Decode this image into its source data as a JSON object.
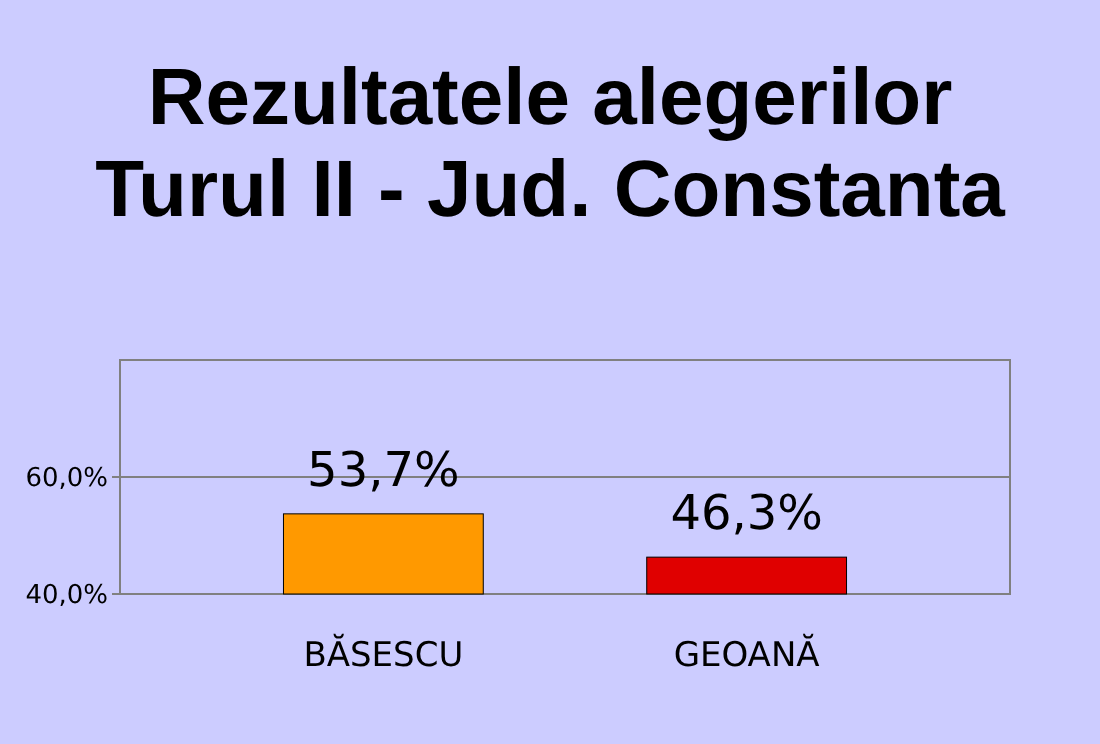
{
  "chart_data": {
    "type": "bar",
    "title": "Rezultatele alegerilor\nTurul II - Jud. Constanta",
    "categories": [
      "BĂSESCU",
      "GEOANĂ"
    ],
    "values": [
      53.7,
      46.3
    ],
    "colors": [
      "#ff9900",
      "#e00000"
    ],
    "value_labels": [
      "53,7%",
      "46,3%"
    ],
    "ylim": [
      40,
      80
    ],
    "yticks": [
      {
        "value": 40,
        "label": "40,0%"
      },
      {
        "value": 60,
        "label": "60,0%"
      }
    ],
    "grid": "y"
  }
}
